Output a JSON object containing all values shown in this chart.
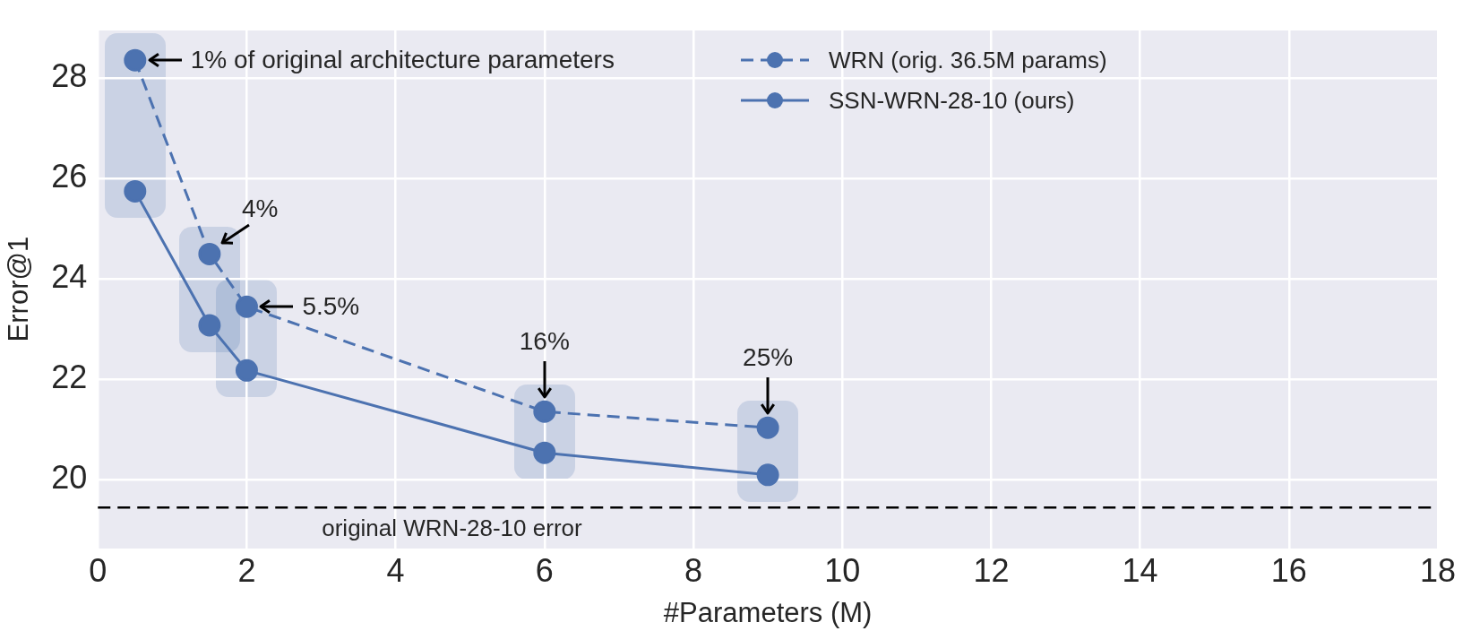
{
  "chart_data": {
    "type": "line",
    "xlabel": "#Parameters (M)",
    "ylabel": "Error@1",
    "x": [
      0.5,
      1.5,
      2,
      6,
      9
    ],
    "series": [
      {
        "name": "WRN (orig. 36.5M params)",
        "color": "#4c72b0",
        "line_style": "dashed",
        "values": [
          28.36,
          24.5,
          23.45,
          21.36,
          21.04
        ]
      },
      {
        "name": "SSN-WRN-28-10 (ours)",
        "color": "#4c72b0",
        "line_style": "solid",
        "values": [
          25.75,
          23.08,
          22.18,
          20.54,
          20.1
        ]
      }
    ],
    "xlim": [
      0,
      18
    ],
    "xticks": [
      0,
      2,
      4,
      6,
      8,
      10,
      12,
      14,
      16,
      18
    ],
    "ylim": [
      18.64,
      28.96
    ],
    "yticks": [
      20,
      22,
      24,
      26,
      28
    ],
    "grid": true,
    "legend": "top right",
    "marker": "circle",
    "ref_lines": [
      {
        "axis": "y",
        "value": 19.45,
        "label": "original WRN-28-10 error",
        "color": "#000000",
        "line_style": "dashed"
      }
    ],
    "annotations": [
      {
        "text": "1% of original architecture parameters",
        "x": 0.5,
        "y": 28.36
      },
      {
        "text": "4%",
        "x": 1.5,
        "y": 24.5
      },
      {
        "text": "5.5%",
        "x": 2,
        "y": 23.45
      },
      {
        "text": "16%",
        "x": 6,
        "y": 21.36
      },
      {
        "text": "25%",
        "x": 9,
        "y": 21.04
      }
    ]
  }
}
